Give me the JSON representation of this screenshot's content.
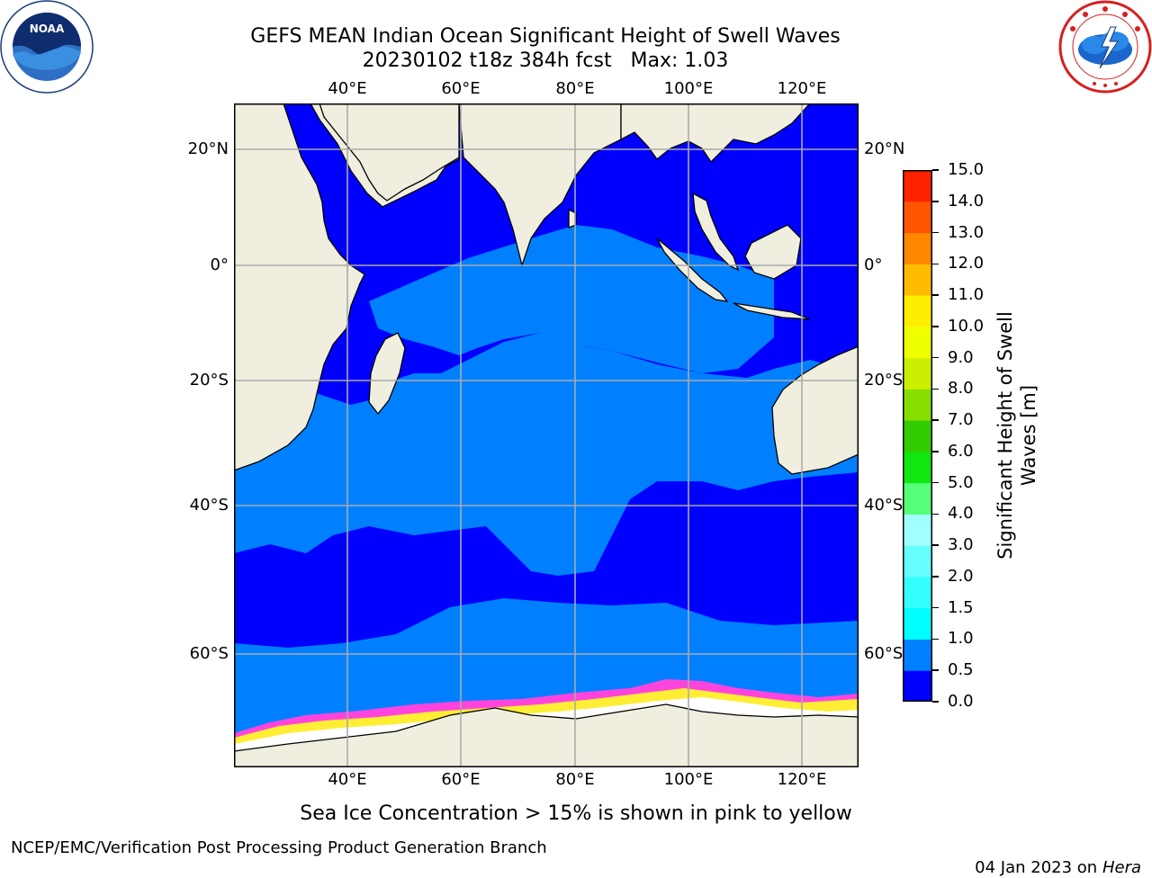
{
  "header": {
    "title_line1": "GEFS MEAN Indian Ocean Significant Height of Swell Waves",
    "title_line2": "20230102 t18z 384h fcst   Max: 1.03"
  },
  "logos": {
    "left": {
      "name": "NOAA",
      "text": "NOAA",
      "icon": "noaa-logo"
    },
    "right": {
      "name": "National Weather Service",
      "icon": "nws-logo"
    }
  },
  "map": {
    "lon_ticks": [
      "40°E",
      "60°E",
      "80°E",
      "100°E",
      "120°E"
    ],
    "lat_ticks": [
      "20°N",
      "0°",
      "20°S",
      "40°S",
      "60°S"
    ],
    "lon_range": [
      20,
      130
    ],
    "lat_range": [
      -74,
      24
    ],
    "grid": true,
    "colors": {
      "land": "#efeedf",
      "ocean_0_0.5": "#0000ff",
      "ocean_0.5_1.0": "#0080ff",
      "ice_pink": "#ff44dd",
      "ice_yellow": "#ffee33",
      "ice_white": "#ffffff"
    },
    "note": "Sea Ice Concentration > 15% is shown in pink to yellow"
  },
  "colorbar": {
    "label": "Significant Height of Swell Waves [m]",
    "label_line1": "Significant Height of Swell",
    "label_line2": "Waves [m]",
    "ticks": [
      "0.0",
      "0.5",
      "1.0",
      "1.5",
      "2.0",
      "3.0",
      "4.0",
      "5.0",
      "6.0",
      "7.0",
      "8.0",
      "9.0",
      "10.0",
      "11.0",
      "12.0",
      "13.0",
      "14.0",
      "15.0"
    ],
    "colors": [
      "#0000ff",
      "#0080ff",
      "#00ffff",
      "#33ffff",
      "#66ffff",
      "#a0ffff",
      "#55ff77",
      "#11e611",
      "#33cc00",
      "#88dd00",
      "#ccee00",
      "#eeff00",
      "#ffee00",
      "#ffbb00",
      "#ff8800",
      "#ff5500",
      "#ff2200"
    ]
  },
  "footer": {
    "left": "NCEP/EMC/Verification Post Processing Product Generation Branch",
    "right_date": "04 Jan 2023 on ",
    "right_machine": "Hera"
  }
}
